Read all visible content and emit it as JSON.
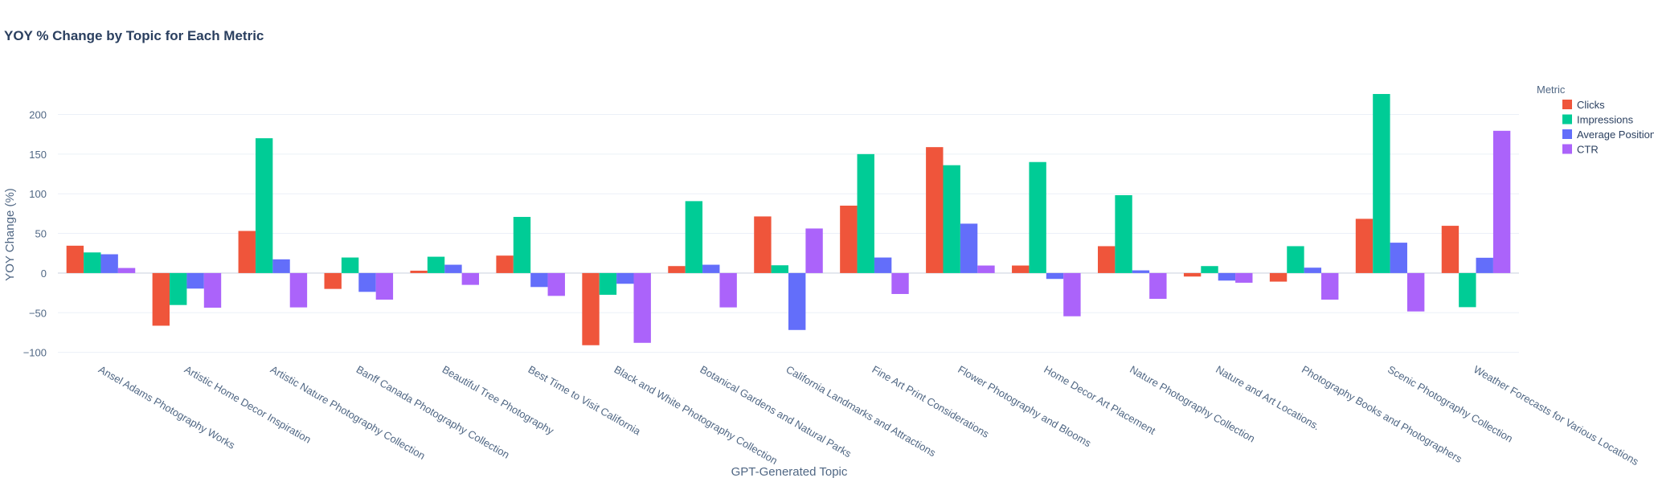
{
  "chart_data": {
    "type": "bar",
    "title": "YOY % Change by Topic for Each Metric",
    "xlabel": "GPT-Generated Topic",
    "ylabel": "YOY Change (%)",
    "ylim": [
      -110,
      240
    ],
    "yticks": [
      -100,
      -50,
      0,
      50,
      100,
      150,
      200
    ],
    "grid": true,
    "legend": {
      "title": "Metric",
      "placement": "right"
    },
    "categories": [
      "Ansel Adams Photography Works",
      "Artistic Home Decor Inspiration",
      "Artistic Nature Photography Collection",
      "Banff Canada Photography Collection",
      "Beautiful Tree Photography",
      "Best Time to Visit California",
      "Black and White Photography Collection",
      "Botanical Gardens and Natural Parks",
      "California Landmarks and Attractions",
      "Fine Art Print Considerations",
      "Flower Photography and Blooms",
      "Home Decor Art Placement",
      "Nature Photography Collection",
      "Nature and Art Locations.",
      "Photography Books and Photographers",
      "Scenic Photography Collection",
      "Weather Forecasts for Various Locations"
    ],
    "series": [
      {
        "name": "Clicks",
        "color": "#EF553B",
        "values": [
          34.5,
          -66.4,
          53.1,
          -20,
          3,
          22,
          -91,
          8.8,
          71.4,
          85,
          158.8,
          9.5,
          33.9,
          -4.4,
          -10.8,
          68.4,
          59.6
        ]
      },
      {
        "name": "Impressions",
        "color": "#00CC96",
        "values": [
          26,
          -40.3,
          170,
          19.6,
          20.6,
          70.8,
          -27.4,
          90.7,
          9.8,
          150,
          136,
          140,
          98.2,
          8.8,
          33.9,
          225.8,
          -43
        ]
      },
      {
        "name": "Average Position",
        "color": "#636EFA",
        "values": [
          23.7,
          -19.6,
          17.3,
          -23.7,
          10.5,
          -17.6,
          -13.5,
          10.5,
          -71.8,
          19.6,
          62.3,
          -7.4,
          3.4,
          -9.5,
          6.8,
          38.3,
          19.3
        ]
      },
      {
        "name": "CTR",
        "color": "#AB63FA",
        "values": [
          6.4,
          -43.7,
          -43.3,
          -33.5,
          -14.9,
          -28.8,
          -88,
          -43.3,
          56.2,
          -26.4,
          9.5,
          -54.5,
          -32.5,
          -12.2,
          -33.5,
          -48.4,
          179.4
        ]
      }
    ]
  }
}
